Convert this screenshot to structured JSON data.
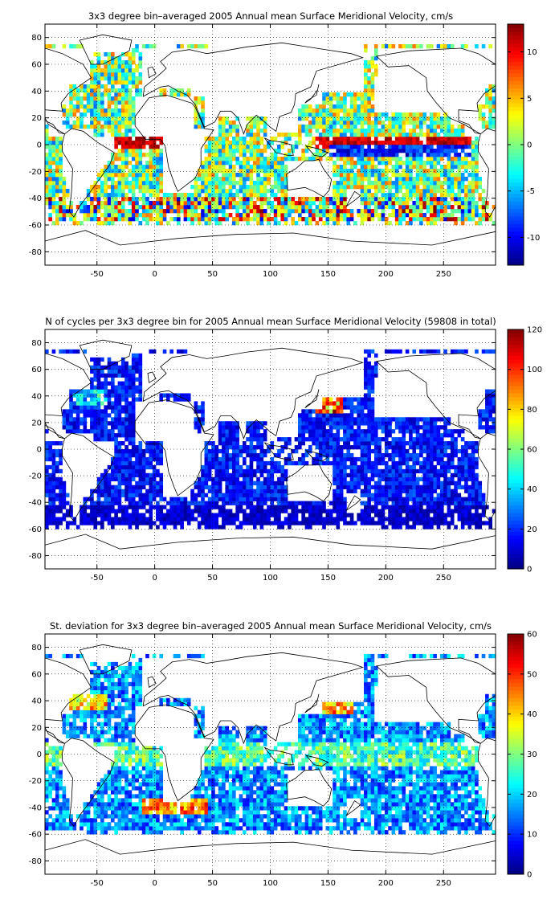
{
  "chart_data": [
    {
      "type": "heatmap",
      "title": "3x3 degree bin–averaged 2005 Annual mean Surface Meridional Velocity, cm/s",
      "xlabel": "",
      "ylabel": "",
      "xlim": [
        -95,
        295
      ],
      "ylim": [
        -90,
        90
      ],
      "x_ticks": [
        -50,
        0,
        50,
        100,
        150,
        200,
        250
      ],
      "y_ticks": [
        -80,
        -60,
        -40,
        -20,
        0,
        20,
        40,
        60,
        80
      ],
      "bin_size_deg": 3,
      "grid": true,
      "colorbar": {
        "range": [
          -13,
          13
        ],
        "ticks": [
          -10,
          -5,
          0,
          5,
          10
        ],
        "colormap": "jet"
      },
      "patterns": [
        {
          "region": "equatorial Pacific, 150 to 270E, 0 to 5N",
          "value": 12
        },
        {
          "region": "equatorial Pacific, 150 to 270E, 0 to 5S",
          "value": -10
        },
        {
          "region": "equatorial Atlantic, -40 to 10E, near equator",
          "value": 10
        },
        {
          "region": "Southern Ocean, 40S to 55S",
          "value": 6
        },
        {
          "region": "subtropical gyres interiors",
          "value": -3
        }
      ]
    },
    {
      "type": "heatmap",
      "title": "N of cycles per 3x3 degree bin for 2005 Annual mean Surface Meridional Velocity (59808 in total)",
      "xlabel": "",
      "ylabel": "",
      "xlim": [
        -95,
        295
      ],
      "ylim": [
        -90,
        90
      ],
      "x_ticks": [
        -50,
        0,
        50,
        100,
        150,
        200,
        250
      ],
      "y_ticks": [
        -80,
        -60,
        -40,
        -20,
        0,
        20,
        40,
        60,
        80
      ],
      "bin_size_deg": 3,
      "grid": true,
      "colorbar": {
        "range": [
          0,
          120
        ],
        "ticks": [
          0,
          20,
          40,
          60,
          80,
          100,
          120
        ],
        "colormap": "jet"
      },
      "total_cycles": 59808,
      "patterns": [
        {
          "region": "Kuroshio extension, 140 to 160E, 30 to 40N",
          "value": 110
        },
        {
          "region": "Gulf Stream, -70 to -40, 35 to 45N",
          "value": 45
        },
        {
          "region": "open ocean typical",
          "value": 15
        },
        {
          "region": "Southern Ocean",
          "value": 8
        }
      ]
    },
    {
      "type": "heatmap",
      "title": "St. deviation for 3x3 degree bin–averaged 2005 Annual mean Surface Meridional Velocity, cm/s",
      "xlabel": "",
      "ylabel": "",
      "xlim": [
        -95,
        295
      ],
      "ylim": [
        -90,
        90
      ],
      "x_ticks": [
        -50,
        0,
        50,
        100,
        150,
        200,
        250
      ],
      "y_ticks": [
        -80,
        -60,
        -40,
        -20,
        0,
        20,
        40,
        60,
        80
      ],
      "bin_size_deg": 3,
      "grid": true,
      "colorbar": {
        "range": [
          0,
          60
        ],
        "ticks": [
          0,
          10,
          20,
          30,
          40,
          50,
          60
        ],
        "colormap": "jet"
      },
      "patterns": [
        {
          "region": "Agulhas retroflection, 10 to 40E, 35 to 45S",
          "value": 45
        },
        {
          "region": "Gulf Stream, -70 to -40, 35 to 45N",
          "value": 40
        },
        {
          "region": "Kuroshio extension, 140 to 170E, 30 to 40N",
          "value": 45
        },
        {
          "region": "equatorial band, 0 to 10",
          "value": 28
        },
        {
          "region": "subtropical interiors",
          "value": 12
        }
      ]
    }
  ]
}
